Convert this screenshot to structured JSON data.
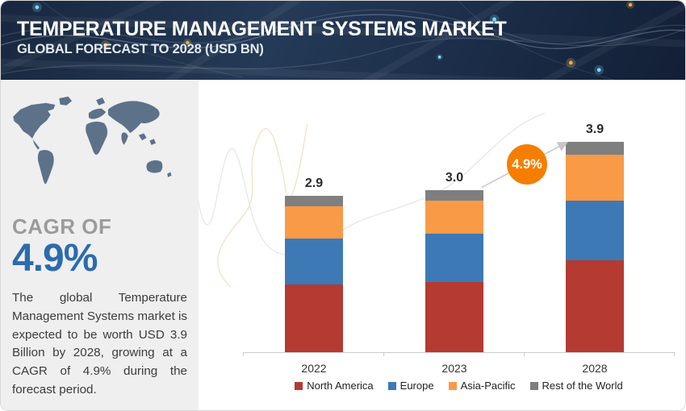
{
  "header": {
    "title": "TEMPERATURE MANAGEMENT SYSTEMS MARKET",
    "subtitle": "GLOBAL FORECAST TO 2028 (USD BN)"
  },
  "sidebar": {
    "cagr_label": "CAGR OF",
    "cagr_value": "4.9%",
    "description": "The global Temperature Management Systems market is expected to be worth USD  3.9 Billion by 2028, growing at a CAGR of 4.9% during the forecast period."
  },
  "chart_data": {
    "type": "bar",
    "stacked": true,
    "categories": [
      "2022",
      "2023",
      "2028"
    ],
    "series": [
      {
        "name": "North America",
        "color": "#b43a32",
        "values": [
          1.25,
          1.3,
          1.7
        ]
      },
      {
        "name": "Europe",
        "color": "#3d79b5",
        "values": [
          0.85,
          0.9,
          1.1
        ]
      },
      {
        "name": "Asia-Pacific",
        "color": "#f99a47",
        "values": [
          0.6,
          0.6,
          0.85
        ]
      },
      {
        "name": "Rest of the World",
        "color": "#7f7f7f",
        "values": [
          0.2,
          0.2,
          0.25
        ]
      }
    ],
    "totals": [
      "2.9",
      "3.0",
      "3.9"
    ],
    "growth_badge": "4.9%",
    "title": "",
    "xlabel": "",
    "ylabel": "",
    "ylim": [
      0,
      4.2
    ],
    "grid": false,
    "legend_position": "bottom"
  },
  "icons": {
    "world_map": "world-map-icon",
    "growth_arrow": "growth-arrow-icon",
    "network_background": "network-lines-icon"
  },
  "colors": {
    "header_bg": "#1d2e49",
    "sidebar_bg": "#efeff0",
    "accent_blue": "#2b6cad",
    "badge_orange": "#f57e00",
    "map_fill": "#5d7189",
    "axis": "#cccccc",
    "muted_gray": "#9b9b9b"
  }
}
